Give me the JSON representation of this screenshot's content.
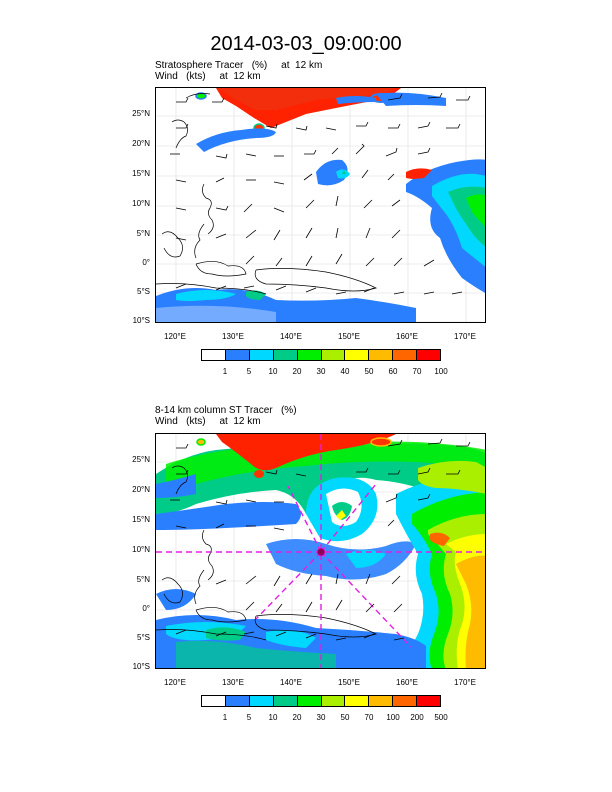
{
  "title": "2014-03-03_09:00:00",
  "panels": [
    {
      "sub1": "Stratosphere Tracer   (%)     at  12 km",
      "sub2": "Wind   (kts)     at  12 km",
      "colorbar": {
        "labels": [
          "1",
          "5",
          "10",
          "20",
          "30",
          "40",
          "50",
          "60",
          "70",
          "100"
        ],
        "colors": [
          "#ffffff",
          "#2a7fff",
          "#00d8ff",
          "#00cc88",
          "#00ee00",
          "#aaee00",
          "#ffff00",
          "#ffbb00",
          "#ff6600",
          "#ff0000"
        ]
      }
    },
    {
      "sub1": "8-14 km column ST Tracer   (%)",
      "sub2": "Wind   (kts)     at  12 km",
      "colorbar": {
        "labels": [
          "1",
          "5",
          "10",
          "20",
          "30",
          "50",
          "70",
          "100",
          "200",
          "500"
        ],
        "colors": [
          "#ffffff",
          "#2a7fff",
          "#00d8ff",
          "#00cc88",
          "#00ee00",
          "#aaee00",
          "#ffff00",
          "#ffbb00",
          "#ff6600",
          "#ff0000"
        ]
      }
    }
  ],
  "lat_labels": [
    "25°N",
    "20°N",
    "15°N",
    "10°N",
    "5°N",
    "0°",
    "5°S",
    "10°S"
  ],
  "lon_labels": [
    "120°E",
    "130°E",
    "140°E",
    "150°E",
    "160°E",
    "170°E"
  ]
}
